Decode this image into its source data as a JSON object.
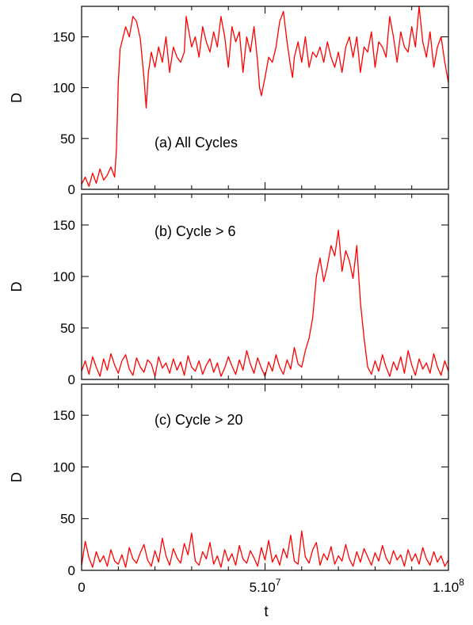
{
  "figure": {
    "x_label": "t",
    "x_ticks": [
      {
        "value": 0,
        "label": "0"
      },
      {
        "value": 50000000,
        "label": "5.10",
        "sup": "7"
      },
      {
        "value": 100000000,
        "label": "1.10",
        "sup": "8"
      }
    ],
    "y_ticks": [
      0,
      50,
      100,
      150
    ],
    "line_color": "#ff0000"
  },
  "chart_data": [
    {
      "type": "line",
      "annotation": "(a) All Cycles",
      "ylabel": "D",
      "xlim": [
        0,
        100000000
      ],
      "ylim": [
        0,
        180
      ],
      "series": [
        {
          "x": [
            0,
            1000000,
            2000000,
            3000000,
            4000000,
            5000000,
            6000000,
            7000000,
            8000000,
            9000000,
            9500000,
            10000000,
            10500000,
            11000000,
            12000000,
            13000000,
            14000000,
            15000000,
            16000000,
            17000000,
            17600000,
            18200000,
            19000000,
            20000000,
            21000000,
            22000000,
            23000000,
            24000000,
            25000000,
            26000000,
            27000000,
            28000000,
            28500000,
            29000000,
            30000000,
            31000000,
            32000000,
            33000000,
            34000000,
            35000000,
            36000000,
            37000000,
            38000000,
            39000000,
            40000000,
            41000000,
            42000000,
            43000000,
            44000000,
            45000000,
            46000000,
            47000000,
            48000000,
            48500000,
            49000000,
            50000000,
            51000000,
            52000000,
            53000000,
            54000000,
            55000000,
            56000000,
            57000000,
            57500000,
            58000000,
            59000000,
            60000000,
            61000000,
            62000000,
            63000000,
            64000000,
            65000000,
            66000000,
            67000000,
            68000000,
            69000000,
            70000000,
            71000000,
            72000000,
            73000000,
            74000000,
            75000000,
            76000000,
            77000000,
            78000000,
            79000000,
            80000000,
            81000000,
            82000000,
            83000000,
            84000000,
            85000000,
            86000000,
            87000000,
            88000000,
            89000000,
            90000000,
            91000000,
            92000000,
            93000000,
            94000000,
            95000000,
            96000000,
            97000000,
            98000000,
            99000000,
            100000000
          ],
          "y": [
            5,
            12,
            3,
            16,
            6,
            20,
            9,
            14,
            22,
            12,
            40,
            105,
            138,
            145,
            160,
            150,
            170,
            165,
            148,
            110,
            80,
            115,
            135,
            120,
            140,
            125,
            150,
            115,
            140,
            130,
            125,
            135,
            170,
            160,
            140,
            150,
            130,
            160,
            145,
            135,
            155,
            140,
            170,
            150,
            120,
            160,
            145,
            155,
            115,
            150,
            135,
            160,
            125,
            100,
            92,
            110,
            130,
            125,
            140,
            165,
            175,
            145,
            120,
            110,
            130,
            145,
            125,
            150,
            120,
            135,
            130,
            140,
            125,
            145,
            130,
            120,
            135,
            115,
            140,
            150,
            130,
            150,
            115,
            140,
            135,
            155,
            120,
            145,
            140,
            130,
            170,
            150,
            125,
            155,
            140,
            135,
            160,
            140,
            180,
            145,
            130,
            155,
            120,
            140,
            150,
            125,
            105
          ]
        }
      ]
    },
    {
      "type": "line",
      "annotation": "(b) Cycle > 6",
      "ylabel": "D",
      "xlim": [
        0,
        100000000
      ],
      "ylim": [
        0,
        180
      ],
      "series": [
        {
          "x": [
            0,
            1000000,
            2000000,
            3000000,
            4000000,
            5000000,
            6000000,
            7000000,
            8000000,
            9000000,
            10000000,
            11000000,
            12000000,
            13000000,
            14000000,
            15000000,
            16000000,
            17000000,
            18000000,
            19000000,
            20000000,
            21000000,
            22000000,
            23000000,
            24000000,
            25000000,
            26000000,
            27000000,
            28000000,
            29000000,
            30000000,
            31000000,
            32000000,
            33000000,
            34000000,
            35000000,
            36000000,
            37000000,
            38000000,
            39000000,
            40000000,
            41000000,
            42000000,
            43000000,
            44000000,
            45000000,
            46000000,
            47000000,
            48000000,
            49000000,
            50000000,
            51000000,
            52000000,
            53000000,
            54000000,
            55000000,
            56000000,
            57000000,
            58000000,
            59000000,
            60000000,
            61000000,
            62000000,
            63000000,
            64000000,
            65000000,
            66000000,
            67000000,
            68000000,
            69000000,
            70000000,
            71000000,
            72000000,
            73000000,
            74000000,
            75000000,
            76000000,
            77000000,
            78000000,
            79000000,
            80000000,
            81000000,
            82000000,
            83000000,
            84000000,
            85000000,
            86000000,
            87000000,
            88000000,
            89000000,
            90000000,
            91000000,
            92000000,
            93000000,
            94000000,
            95000000,
            96000000,
            97000000,
            98000000,
            99000000,
            100000000
          ],
          "y": [
            8,
            18,
            5,
            22,
            12,
            3,
            20,
            9,
            25,
            14,
            6,
            18,
            24,
            10,
            4,
            21,
            12,
            7,
            19,
            15,
            3,
            22,
            11,
            16,
            6,
            20,
            9,
            17,
            4,
            23,
            12,
            8,
            18,
            5,
            14,
            20,
            7,
            16,
            3,
            11,
            22,
            13,
            5,
            19,
            9,
            28,
            15,
            6,
            21,
            11,
            3,
            17,
            8,
            24,
            12,
            5,
            19,
            10,
            31,
            15,
            12,
            28,
            40,
            60,
            100,
            118,
            95,
            110,
            130,
            120,
            145,
            105,
            125,
            115,
            98,
            130,
            75,
            40,
            12,
            5,
            18,
            8,
            24,
            12,
            3,
            17,
            9,
            22,
            6,
            28,
            14,
            4,
            20,
            10,
            16,
            6,
            25,
            12,
            4,
            18,
            8
          ]
        }
      ]
    },
    {
      "type": "line",
      "annotation": "(c) Cycle > 20",
      "ylabel": "D",
      "xlim": [
        0,
        100000000
      ],
      "ylim": [
        0,
        180
      ],
      "series": [
        {
          "x": [
            0,
            1000000,
            2000000,
            3000000,
            4000000,
            5000000,
            6000000,
            7000000,
            8000000,
            9000000,
            10000000,
            11000000,
            12000000,
            13000000,
            14000000,
            15000000,
            16000000,
            17000000,
            18000000,
            19000000,
            20000000,
            21000000,
            22000000,
            23000000,
            24000000,
            25000000,
            26000000,
            27000000,
            28000000,
            29000000,
            30000000,
            31000000,
            32000000,
            33000000,
            34000000,
            35000000,
            36000000,
            37000000,
            38000000,
            39000000,
            40000000,
            41000000,
            42000000,
            43000000,
            44000000,
            45000000,
            46000000,
            47000000,
            48000000,
            49000000,
            50000000,
            51000000,
            52000000,
            53000000,
            54000000,
            55000000,
            56000000,
            57000000,
            58000000,
            59000000,
            60000000,
            61000000,
            62000000,
            63000000,
            64000000,
            65000000,
            66000000,
            67000000,
            68000000,
            69000000,
            70000000,
            71000000,
            72000000,
            73000000,
            74000000,
            75000000,
            76000000,
            77000000,
            78000000,
            79000000,
            80000000,
            81000000,
            82000000,
            83000000,
            84000000,
            85000000,
            86000000,
            87000000,
            88000000,
            89000000,
            90000000,
            91000000,
            92000000,
            93000000,
            94000000,
            95000000,
            96000000,
            97000000,
            98000000,
            99000000,
            100000000
          ],
          "y": [
            5,
            28,
            12,
            3,
            18,
            8,
            14,
            4,
            20,
            9,
            6,
            15,
            3,
            22,
            11,
            7,
            17,
            25,
            10,
            4,
            19,
            8,
            31,
            14,
            5,
            21,
            12,
            7,
            26,
            15,
            36,
            9,
            5,
            18,
            11,
            27,
            6,
            14,
            3,
            20,
            9,
            16,
            5,
            24,
            11,
            7,
            19,
            12,
            4,
            22,
            10,
            29,
            8,
            15,
            5,
            21,
            12,
            34,
            9,
            6,
            38,
            13,
            7,
            20,
            27,
            5,
            16,
            10,
            23,
            6,
            14,
            9,
            25,
            11,
            4,
            18,
            8,
            21,
            13,
            5,
            17,
            9,
            24,
            12,
            6,
            19,
            10,
            15,
            4,
            20,
            9,
            16,
            6,
            22,
            11,
            5,
            18,
            8,
            14,
            4,
            10
          ]
        }
      ]
    }
  ]
}
